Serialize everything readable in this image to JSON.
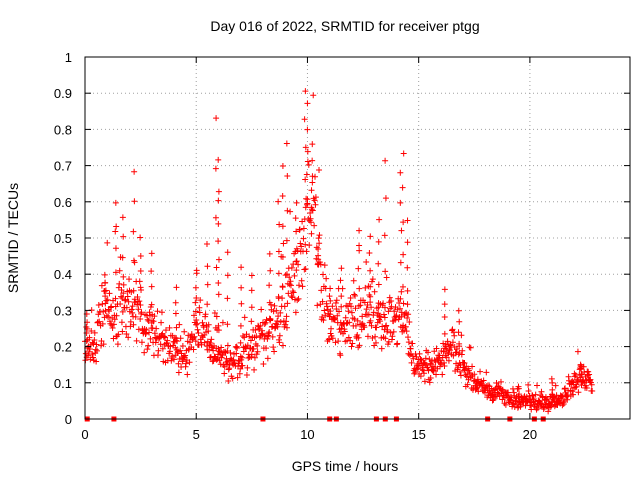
{
  "chart_data": {
    "type": "scatter",
    "title": "Day 016 of 2022, SRMTID for receiver ptgg",
    "xlabel": "GPS time / hours",
    "ylabel": "SRMTID / TECUs",
    "xlim": [
      0,
      24.5
    ],
    "ylim": [
      0,
      1
    ],
    "x_ticks": [
      0,
      5,
      10,
      15,
      20
    ],
    "y_ticks": [
      0,
      0.1,
      0.2,
      0.3,
      0.4,
      0.5,
      0.6,
      0.7,
      0.8,
      0.9,
      1
    ],
    "x_tick_labels": [
      "0",
      "5",
      "10",
      "15",
      "20"
    ],
    "y_tick_labels": [
      "0",
      "0.1",
      "0.2",
      "0.3",
      "0.4",
      "0.5",
      "0.6",
      "0.7",
      "0.8",
      "0.9",
      "1"
    ],
    "grid": true,
    "marker": "+",
    "color": "#ff0000",
    "series": [
      {
        "name": "SRMTID",
        "profile": [
          [
            0.0,
            0.2
          ],
          [
            0.3,
            0.2
          ],
          [
            0.6,
            0.26
          ],
          [
            0.9,
            0.3
          ],
          [
            1.2,
            0.27
          ],
          [
            1.5,
            0.3
          ],
          [
            1.8,
            0.3
          ],
          [
            2.1,
            0.3
          ],
          [
            2.4,
            0.29
          ],
          [
            2.7,
            0.25
          ],
          [
            3.0,
            0.24
          ],
          [
            3.3,
            0.22
          ],
          [
            3.6,
            0.2
          ],
          [
            4.0,
            0.2
          ],
          [
            4.5,
            0.17
          ],
          [
            5.0,
            0.24
          ],
          [
            5.5,
            0.22
          ],
          [
            6.0,
            0.18
          ],
          [
            6.5,
            0.15
          ],
          [
            7.0,
            0.17
          ],
          [
            7.5,
            0.19
          ],
          [
            8.0,
            0.22
          ],
          [
            8.5,
            0.26
          ],
          [
            9.0,
            0.32
          ],
          [
            9.5,
            0.4
          ],
          [
            10.0,
            0.56
          ],
          [
            10.3,
            0.55
          ],
          [
            10.6,
            0.36
          ],
          [
            11.0,
            0.27
          ],
          [
            11.5,
            0.24
          ],
          [
            12.0,
            0.27
          ],
          [
            12.5,
            0.28
          ],
          [
            13.0,
            0.3
          ],
          [
            13.5,
            0.24
          ],
          [
            14.0,
            0.28
          ],
          [
            14.3,
            0.3
          ],
          [
            14.6,
            0.22
          ],
          [
            15.0,
            0.14
          ],
          [
            15.5,
            0.14
          ],
          [
            16.0,
            0.16
          ],
          [
            16.5,
            0.19
          ],
          [
            17.0,
            0.14
          ],
          [
            17.5,
            0.11
          ],
          [
            18.0,
            0.09
          ],
          [
            18.5,
            0.07
          ],
          [
            19.0,
            0.06
          ],
          [
            19.5,
            0.05
          ],
          [
            20.0,
            0.05
          ],
          [
            20.5,
            0.04
          ],
          [
            21.0,
            0.05
          ],
          [
            21.5,
            0.06
          ],
          [
            22.0,
            0.1
          ],
          [
            22.5,
            0.12
          ],
          [
            22.8,
            0.1
          ]
        ],
        "spikes": [
          [
            0.1,
            0.29
          ],
          [
            0.9,
            0.4
          ],
          [
            1.4,
            0.6
          ],
          [
            1.7,
            0.56
          ],
          [
            2.2,
            0.68
          ],
          [
            2.5,
            0.5
          ],
          [
            3.0,
            0.46
          ],
          [
            4.1,
            0.36
          ],
          [
            5.0,
            0.4
          ],
          [
            5.5,
            0.48
          ],
          [
            5.9,
            0.83
          ],
          [
            6.0,
            0.72
          ],
          [
            6.0,
            0.63
          ],
          [
            6.4,
            0.46
          ],
          [
            7.0,
            0.42
          ],
          [
            7.5,
            0.4
          ],
          [
            8.3,
            0.46
          ],
          [
            8.7,
            0.6
          ],
          [
            8.9,
            0.7
          ],
          [
            9.1,
            0.76
          ],
          [
            9.5,
            0.6
          ],
          [
            9.9,
            0.91
          ],
          [
            10.0,
            0.87
          ],
          [
            10.2,
            0.76
          ],
          [
            10.5,
            0.5
          ],
          [
            11.0,
            0.36
          ],
          [
            11.5,
            0.42
          ],
          [
            12.3,
            0.52
          ],
          [
            12.8,
            0.5
          ],
          [
            13.2,
            0.55
          ],
          [
            13.5,
            0.71
          ],
          [
            14.2,
            0.68
          ],
          [
            14.3,
            0.73
          ],
          [
            14.5,
            0.55
          ],
          [
            16.2,
            0.36
          ],
          [
            16.8,
            0.3
          ],
          [
            19.5,
            0.09
          ],
          [
            21.0,
            0.11
          ],
          [
            22.3,
            0.15
          ]
        ],
        "zero_points": [
          0.1,
          1.3,
          8.0,
          11.0,
          11.3,
          13.1,
          13.5,
          14.0,
          18.1,
          19.1,
          20.2,
          20.6
        ]
      }
    ]
  }
}
